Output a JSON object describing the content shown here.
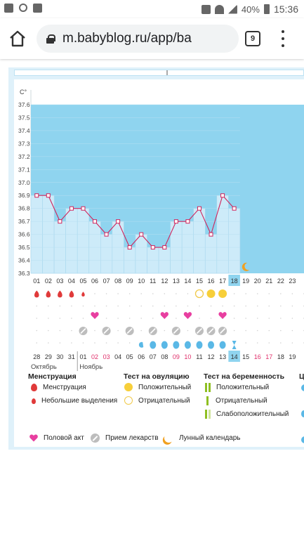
{
  "statusbar": {
    "battery": "40%",
    "time": "15:36"
  },
  "browser": {
    "url": "m.babyblog.ru/app/ba",
    "tab_count": "9"
  },
  "chart_data": {
    "type": "line",
    "ylabel": "C°",
    "y_ticks": [
      "37.6",
      "37.5",
      "37.4",
      "37.3",
      "37.2",
      "37.1",
      "37.0",
      "36.9",
      "36.8",
      "36.7",
      "36.6",
      "36.5",
      "36.4",
      "36.3"
    ],
    "ylim": [
      36.3,
      37.6
    ],
    "cycle_days": [
      "01",
      "02",
      "03",
      "04",
      "05",
      "06",
      "07",
      "08",
      "09",
      "10",
      "11",
      "12",
      "13",
      "14",
      "15",
      "16",
      "17",
      "18",
      "19",
      "20",
      "21",
      "22",
      "23"
    ],
    "current_day": "18",
    "temperatures": [
      36.9,
      36.9,
      36.7,
      36.8,
      36.8,
      36.7,
      36.6,
      36.7,
      36.5,
      36.6,
      36.5,
      36.5,
      36.7,
      36.7,
      36.8,
      36.6,
      36.9,
      36.8
    ],
    "dates": [
      "28",
      "29",
      "30",
      "31",
      "01",
      "02",
      "03",
      "04",
      "05",
      "06",
      "07",
      "08",
      "09",
      "10",
      "11",
      "12",
      "13",
      "14",
      "15",
      "16",
      "17",
      "18",
      "19"
    ],
    "highlighted_date": "14",
    "red_dates": [
      "02",
      "03",
      "09",
      "10",
      "16",
      "17"
    ],
    "month_1": "Октябрь",
    "month_2": "Ноябрь",
    "marks": {
      "menstruation_days": [
        1,
        2,
        3,
        4
      ],
      "light_discharge_days": [
        5
      ],
      "ovulation_negative_days": [
        15
      ],
      "ovulation_positive_days": [
        16,
        17
      ],
      "intercourse_days": [
        6,
        12,
        14,
        17
      ],
      "medication_days": [
        5,
        7,
        9,
        11,
        13,
        15,
        16,
        17
      ],
      "blue_drop_days": [
        10,
        11,
        12,
        13,
        14,
        15,
        16,
        17
      ],
      "moon_day": 19
    }
  },
  "legend": {
    "menstruation_header": "Менструация",
    "menstruation": "Менструация",
    "light_discharge": "Небольшие выделения",
    "ovulation_header": "Тест на овуляцию",
    "ovulation_positive": "Положительный",
    "ovulation_negative": "Отрицательный",
    "pregnancy_header": "Тест на беременность",
    "pregnancy_positive": "Положительный",
    "pregnancy_negative": "Отрицательный",
    "pregnancy_weak": "Слабоположительный",
    "fourth_header": "Ц",
    "intercourse": "Половой акт",
    "medication": "Прием лекарств",
    "lunar": "Лунный календарь"
  },
  "colors": {
    "plot_area": "#8fd4ef",
    "bars": "#cdebf9",
    "line": "#d0245c",
    "menstruation": "#e03a3a",
    "ovulation": "#f7cf3a",
    "pregnancy": "#8fbf22",
    "heart": "#e83fa0",
    "medication": "#bdbdbd",
    "blue_drop": "#5ab8e6",
    "moon": "#f0a020"
  }
}
